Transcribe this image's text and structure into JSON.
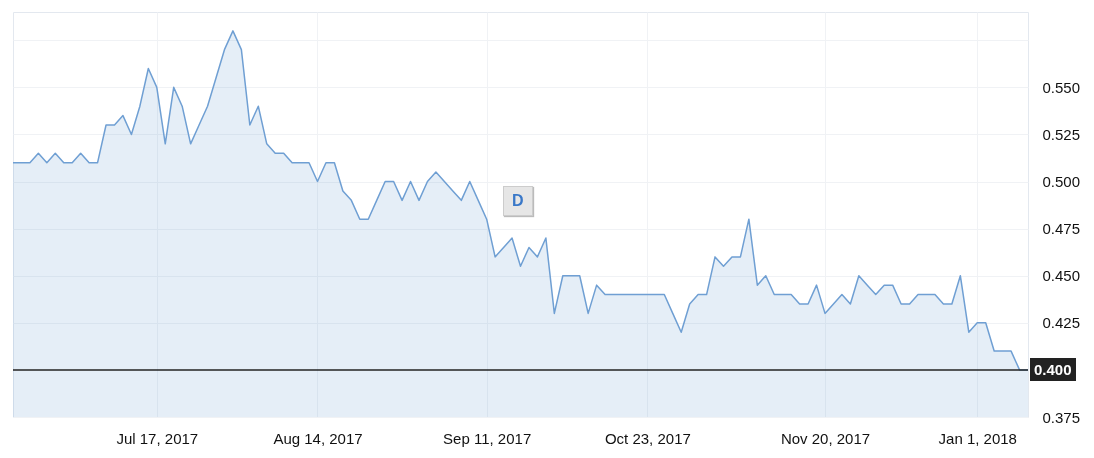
{
  "chart_data": {
    "type": "area",
    "categories": [
      null,
      null,
      null,
      null,
      null,
      null,
      null,
      null,
      null,
      null,
      null,
      null,
      null,
      null,
      null,
      null,
      null,
      "Jul 17, 2017",
      null,
      null,
      null,
      null,
      null,
      null,
      null,
      null,
      null,
      null,
      null,
      null,
      null,
      null,
      null,
      null,
      null,
      null,
      "Aug 14, 2017",
      null,
      null,
      null,
      null,
      null,
      null,
      null,
      null,
      null,
      null,
      null,
      null,
      null,
      null,
      null,
      null,
      null,
      null,
      null,
      "Sep 11, 2017",
      null,
      null,
      null,
      null,
      null,
      null,
      null,
      null,
      null,
      null,
      null,
      null,
      null,
      null,
      null,
      null,
      null,
      null,
      "Oct 23, 2017",
      null,
      null,
      null,
      null,
      null,
      null,
      null,
      null,
      null,
      null,
      null,
      null,
      null,
      null,
      null,
      null,
      null,
      null,
      null,
      null,
      "Nov 20, 2017",
      null,
      null,
      null,
      null,
      null,
      null,
      null,
      null,
      null,
      null,
      null,
      null,
      null,
      null,
      null,
      null,
      null,
      "Jan 1, 2018",
      null,
      null,
      null,
      null,
      null,
      null
    ],
    "series": [
      {
        "color": "#6f9fd3",
        "values": [
          0.51,
          0.51,
          0.51,
          0.515,
          0.51,
          0.515,
          0.51,
          0.51,
          0.515,
          0.51,
          0.51,
          0.53,
          0.53,
          0.535,
          0.525,
          0.54,
          0.56,
          0.55,
          0.52,
          0.55,
          0.54,
          0.52,
          0.53,
          0.54,
          0.555,
          0.57,
          0.58,
          0.57,
          0.53,
          0.54,
          0.52,
          0.515,
          0.515,
          0.51,
          0.51,
          0.51,
          0.5,
          0.51,
          0.51,
          0.495,
          0.49,
          0.48,
          0.48,
          0.49,
          0.5,
          0.5,
          0.49,
          0.5,
          0.49,
          0.5,
          0.505,
          0.5,
          0.495,
          0.49,
          0.5,
          0.49,
          0.48,
          0.46,
          0.465,
          0.47,
          0.455,
          0.465,
          0.46,
          0.47,
          0.43,
          0.45,
          0.45,
          0.45,
          0.43,
          0.445,
          0.44,
          0.44,
          0.44,
          0.44,
          0.44,
          0.44,
          0.44,
          0.44,
          0.43,
          0.42,
          0.435,
          0.44,
          0.44,
          0.46,
          0.455,
          0.46,
          0.46,
          0.48,
          0.445,
          0.45,
          0.44,
          0.44,
          0.44,
          0.435,
          0.435,
          0.445,
          0.43,
          0.435,
          0.44,
          0.435,
          0.45,
          0.445,
          0.44,
          0.445,
          0.445,
          0.435,
          0.435,
          0.44,
          0.44,
          0.44,
          0.435,
          0.435,
          0.45,
          0.42,
          0.425,
          0.425,
          0.41,
          0.41,
          0.41,
          0.4,
          0.4
        ]
      }
    ],
    "ylim": [
      0.375,
      0.59
    ],
    "yticks": [
      {
        "value": 0.375,
        "label": "0.375"
      },
      {
        "value": 0.425,
        "label": "0.425"
      },
      {
        "value": 0.45,
        "label": "0.450"
      },
      {
        "value": 0.475,
        "label": "0.475"
      },
      {
        "value": 0.5,
        "label": "0.500"
      },
      {
        "value": 0.525,
        "label": "0.525"
      },
      {
        "value": 0.55,
        "label": "0.550"
      },
      {
        "value": 0.575,
        "label": null
      }
    ],
    "grid": true,
    "ref_lines": [
      {
        "axis": "y",
        "value": 0.4,
        "label": "0.400",
        "color": "#222222"
      }
    ],
    "annotations": [
      "D"
    ]
  }
}
